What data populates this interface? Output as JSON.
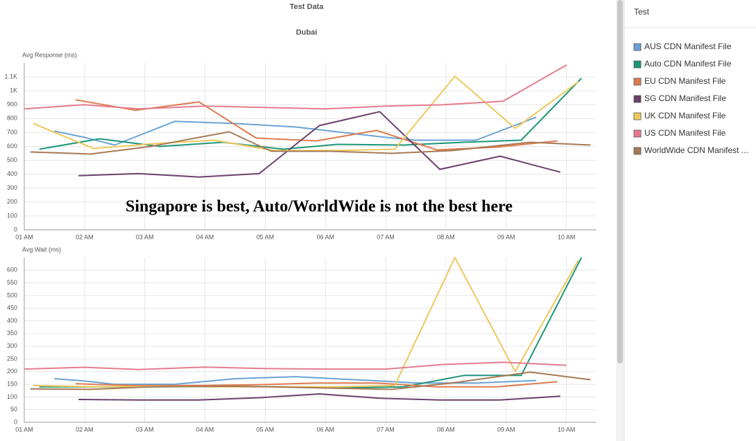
{
  "header": {
    "title": "Test Data",
    "subtitle": "Dubai"
  },
  "annotation": "Singapore is best, Auto/WorldWide is not the best here",
  "sidebar": {
    "title": "Test"
  },
  "chart_data": [
    {
      "type": "line",
      "y_label": "Avg Response (ms)",
      "grid": true,
      "xlim": [
        1,
        10.5
      ],
      "xticks": [
        {
          "value": 1,
          "label": "01 AM"
        },
        {
          "value": 2,
          "label": "02 AM"
        },
        {
          "value": 3,
          "label": "03 AM"
        },
        {
          "value": 4,
          "label": "04 AM"
        },
        {
          "value": 5,
          "label": "05 AM"
        },
        {
          "value": 6,
          "label": "06 AM"
        },
        {
          "value": 7,
          "label": "07 AM"
        },
        {
          "value": 8,
          "label": "08 AM"
        },
        {
          "value": 9,
          "label": "09 AM"
        },
        {
          "value": 10,
          "label": "10 AM"
        }
      ],
      "ylim": [
        0,
        1200
      ],
      "yticks": [
        0,
        100,
        200,
        300,
        400,
        500,
        600,
        700,
        800,
        900,
        {
          "value": 1000,
          "label": "1K"
        },
        {
          "value": 1100,
          "label": "1.1K"
        }
      ],
      "series": [
        {
          "name": "AUS CDN Manifest File",
          "color": "#6aa2d4",
          "x": [
            1.5,
            2,
            2.5,
            3.5,
            4.5,
            5.5,
            7,
            7.5,
            8.5,
            9.5
          ],
          "values": [
            710,
            665,
            610,
            780,
            765,
            740,
            665,
            645,
            645,
            810
          ]
        },
        {
          "name": "Auto CDN Manifest File",
          "color": "#1b9678",
          "x": [
            1.25,
            2.25,
            3.25,
            4.3,
            5.3,
            6.2,
            7.3,
            8.3,
            9.25,
            10.25
          ],
          "values": [
            580,
            655,
            600,
            630,
            580,
            615,
            610,
            630,
            645,
            1090
          ]
        },
        {
          "name": "EU CDN Manifest File",
          "color": "#df7a4e",
          "x": [
            1.85,
            2.85,
            3.9,
            4.85,
            5.85,
            6.85,
            7.85,
            8.85,
            9.85
          ],
          "values": [
            935,
            860,
            920,
            660,
            640,
            715,
            575,
            595,
            640
          ]
        },
        {
          "name": "SG CDN Manifest File",
          "color": "#6a406c",
          "x": [
            1.9,
            2.9,
            3.9,
            4.9,
            5.9,
            6.9,
            7.9,
            8.9,
            9.9
          ],
          "values": [
            390,
            405,
            380,
            405,
            750,
            850,
            435,
            530,
            415
          ]
        },
        {
          "name": "UK CDN Manifest File",
          "color": "#efc75c",
          "x": [
            1.15,
            2.15,
            3.15,
            4.15,
            5.15,
            6.15,
            7.15,
            8.15,
            9.15,
            10.2
          ],
          "values": [
            765,
            585,
            620,
            645,
            570,
            570,
            580,
            1105,
            730,
            1065
          ]
        },
        {
          "name": "US CDN Manifest File",
          "color": "#e57b8d",
          "x": [
            1,
            2,
            2.9,
            4,
            5,
            6,
            7,
            7.95,
            8.95,
            10
          ],
          "values": [
            870,
            900,
            870,
            890,
            880,
            870,
            890,
            900,
            925,
            1185
          ]
        },
        {
          "name": "WorldWide CDN Manifest ...",
          "color": "#a67954",
          "x": [
            1.1,
            2.1,
            3.1,
            4.4,
            5.1,
            6.1,
            7.1,
            8.1,
            9.4,
            10.4
          ],
          "values": [
            560,
            545,
            600,
            705,
            565,
            565,
            550,
            570,
            630,
            610
          ]
        }
      ]
    },
    {
      "type": "line",
      "y_label": "Avg Wait (ms)",
      "grid": true,
      "xlim": [
        1,
        10.5
      ],
      "xticks": [
        {
          "value": 1,
          "label": "01 AM"
        },
        {
          "value": 2,
          "label": "02 AM"
        },
        {
          "value": 3,
          "label": "03 AM"
        },
        {
          "value": 4,
          "label": "04 AM"
        },
        {
          "value": 5,
          "label": "05 AM"
        },
        {
          "value": 6,
          "label": "06 AM"
        },
        {
          "value": 7,
          "label": "07 AM"
        },
        {
          "value": 8,
          "label": "08 AM"
        },
        {
          "value": 9,
          "label": "09 AM"
        },
        {
          "value": 10,
          "label": "10 AM"
        }
      ],
      "ylim": [
        0,
        650
      ],
      "yticks": [
        0,
        50,
        100,
        150,
        200,
        250,
        300,
        350,
        400,
        450,
        500,
        550,
        600
      ],
      "series": [
        {
          "color": "#6aa2d4",
          "x": [
            1.5,
            2,
            2.5,
            3.5,
            4.5,
            5.5,
            7,
            7.5,
            8.5,
            9.5
          ],
          "values": [
            172,
            163,
            150,
            150,
            172,
            180,
            162,
            155,
            155,
            165
          ]
        },
        {
          "color": "#1b9678",
          "x": [
            1.25,
            2.25,
            3.25,
            4.3,
            5.3,
            6.2,
            7.3,
            8.3,
            9.25,
            10.25
          ],
          "values": [
            140,
            140,
            140,
            142,
            140,
            135,
            140,
            185,
            185,
            650
          ]
        },
        {
          "color": "#df7a4e",
          "x": [
            1.85,
            2.85,
            3.9,
            4.85,
            5.85,
            6.85,
            7.85,
            8.85,
            9.85
          ],
          "values": [
            152,
            145,
            145,
            148,
            155,
            155,
            140,
            140,
            160
          ]
        },
        {
          "color": "#6a406c",
          "x": [
            1.9,
            2.9,
            3.9,
            4.9,
            5.9,
            6.9,
            7.9,
            8.9,
            9.9
          ],
          "values": [
            90,
            88,
            88,
            97,
            112,
            95,
            88,
            88,
            103
          ]
        },
        {
          "color": "#efc75c",
          "x": [
            1.15,
            2.15,
            3.15,
            4.15,
            5.15,
            6.15,
            7.15,
            8.15,
            9.15,
            10.2
          ],
          "values": [
            145,
            140,
            142,
            140,
            140,
            140,
            145,
            650,
            200,
            640
          ]
        },
        {
          "color": "#e57b8d",
          "x": [
            1,
            2,
            2.9,
            4,
            5,
            6,
            7,
            7.95,
            8.95,
            10
          ],
          "values": [
            210,
            217,
            208,
            218,
            212,
            210,
            210,
            228,
            237,
            225
          ]
        },
        {
          "color": "#a67954",
          "x": [
            1.1,
            2.1,
            3.1,
            4.4,
            5.1,
            6.1,
            7.1,
            8.1,
            9.4,
            10.4
          ],
          "values": [
            132,
            130,
            140,
            142,
            140,
            135,
            130,
            155,
            198,
            168
          ]
        }
      ]
    }
  ]
}
